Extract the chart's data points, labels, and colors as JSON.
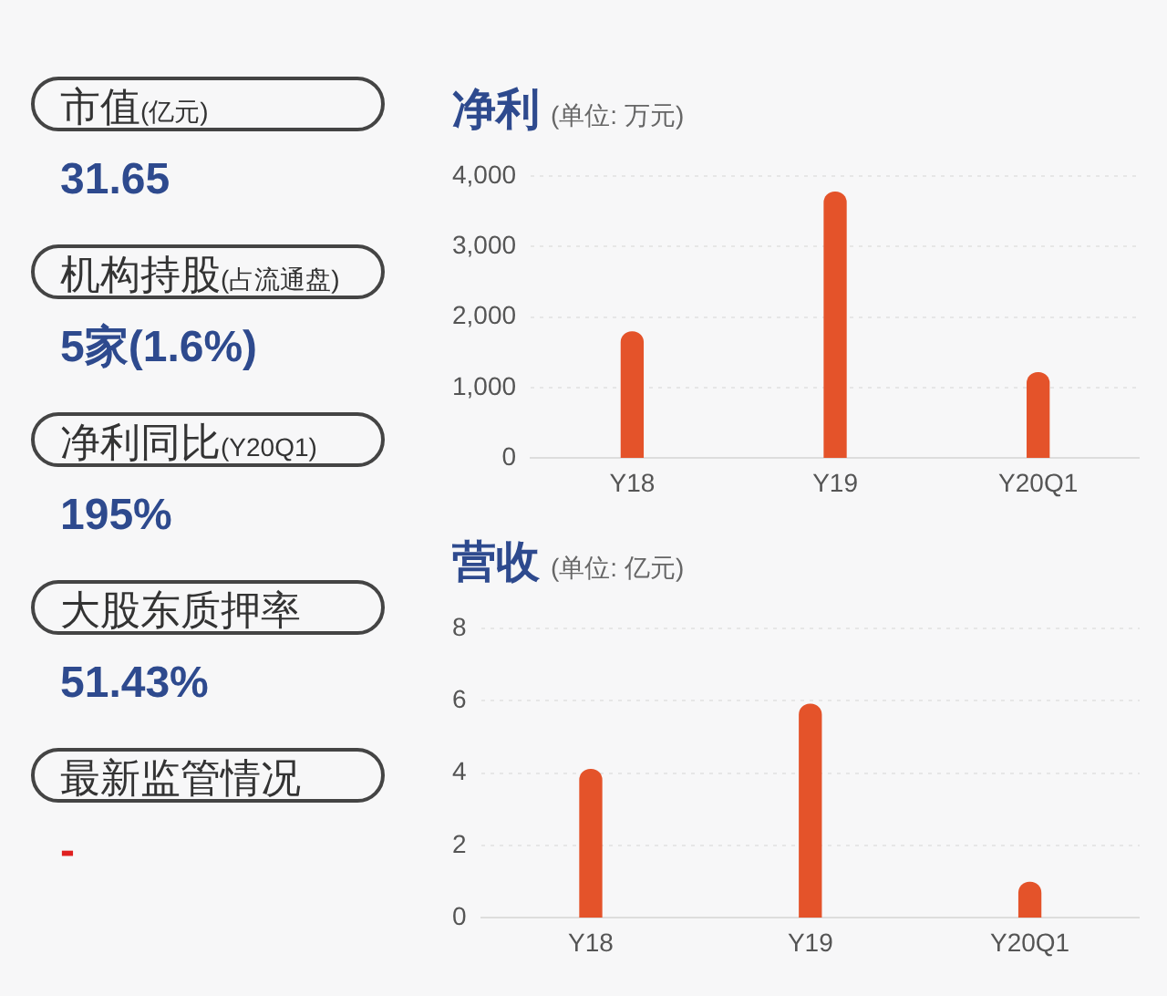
{
  "chart_data": [
    {
      "type": "other",
      "annotations": [
        "市值(亿元)",
        "31.65",
        "机构持股(占流通盘)",
        "5家(1.6%)",
        "净利同比(Y20Q1)",
        "195%",
        "大股东质押率",
        "51.43%",
        "最新监管情况",
        "-"
      ]
    },
    {
      "type": "bar",
      "title": "净利",
      "subtitle": "(单位: 万元)",
      "categories": [
        "Y18",
        "Y19",
        "Y20Q1"
      ],
      "values": [
        1790,
        3770,
        1210
      ],
      "color": "#e4532a",
      "ylim": [
        0,
        4000
      ],
      "yticks": [
        {
          "value": 0,
          "label": "0"
        },
        {
          "value": 1000,
          "label": "1,000"
        },
        {
          "value": 2000,
          "label": "2,000"
        },
        {
          "value": 3000,
          "label": "3,000"
        },
        {
          "value": 4000,
          "label": "4,000"
        }
      ],
      "grid": "y"
    },
    {
      "type": "bar",
      "title": "营收",
      "subtitle": "(单位: 亿元)",
      "categories": [
        "Y18",
        "Y19",
        "Y20Q1"
      ],
      "values": [
        4.1,
        5.9,
        0.98
      ],
      "color": "#e4532a",
      "ylim": [
        0,
        8
      ],
      "yticks": [
        0,
        2,
        4,
        6,
        8
      ],
      "grid": "y"
    }
  ]
}
